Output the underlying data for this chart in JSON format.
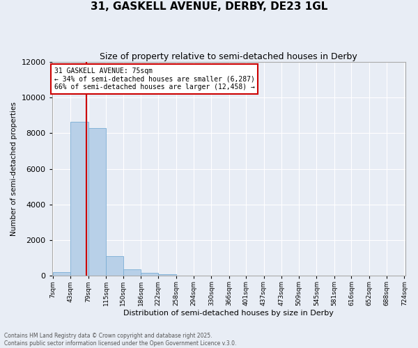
{
  "title": "31, GASKELL AVENUE, DERBY, DE23 1GL",
  "subtitle": "Size of property relative to semi-detached houses in Derby",
  "xlabel": "Distribution of semi-detached houses by size in Derby",
  "ylabel": "Number of semi-detached properties",
  "property_size": 75,
  "property_label": "31 GASKELL AVENUE: 75sqm",
  "pct_smaller": 34,
  "pct_larger": 66,
  "count_smaller": 6287,
  "count_larger": 12458,
  "bin_edges": [
    7,
    43,
    79,
    115,
    150,
    186,
    222,
    258,
    294,
    330,
    366,
    401,
    437,
    473,
    509,
    545,
    581,
    616,
    652,
    688,
    724
  ],
  "bin_heights": [
    200,
    8650,
    8300,
    1100,
    350,
    150,
    100,
    10,
    5,
    2,
    1,
    1,
    0,
    0,
    0,
    0,
    0,
    0,
    0,
    0
  ],
  "bar_color": "#b8d0e8",
  "bar_edge_color": "#7aadd4",
  "vline_color": "#cc0000",
  "annotation_box_color": "#cc0000",
  "bg_color": "#e8edf5",
  "grid_color": "#ffffff",
  "ylim": [
    0,
    12000
  ],
  "yticks": [
    0,
    2000,
    4000,
    6000,
    8000,
    10000,
    12000
  ],
  "title_fontsize": 11,
  "subtitle_fontsize": 9
}
